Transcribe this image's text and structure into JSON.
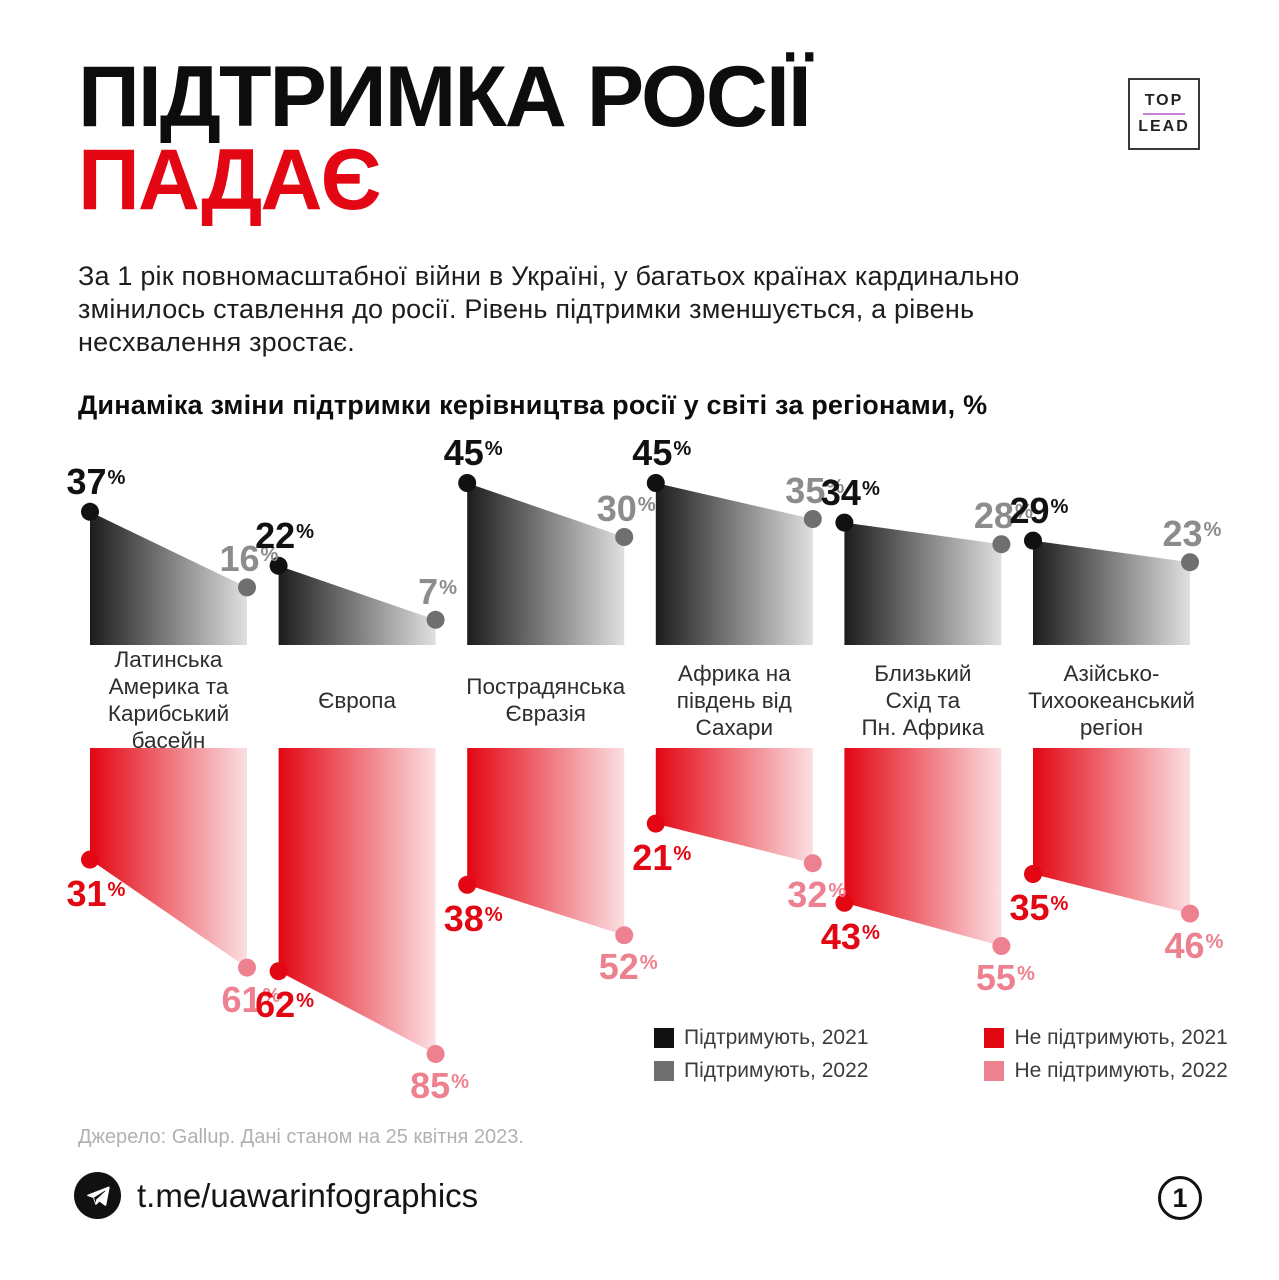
{
  "header": {
    "title_line1": "ПІДТРИМКА РОСІЇ",
    "title_line2": "ПАДАЄ",
    "logo_top": "TOP",
    "logo_bottom": "LEAD"
  },
  "intro_lines": [
    "За 1 рік повномасштабної війни в Україні, у багатьох країнах кардинально",
    "змінилось ставлення до росії. Рівень підтримки зменшується, а рівень",
    "несхвалення зростає."
  ],
  "chart_data": {
    "type": "area",
    "title": "Динаміка зміни підтримки керівництва росії у світі за регіонами, %",
    "unit": "%",
    "ylim": [
      0,
      100
    ],
    "grid": false,
    "legend_position": "bottom-right",
    "categories": [
      "Латинська Америка та Карибський басейн",
      "Європа",
      "Пострадянська Євразія",
      "Африка на південь від Сахари",
      "Близький Схід та Пн. Африка",
      "Азійсько-Тихоокеанський регіон"
    ],
    "category_lines": [
      [
        "Латинська",
        "Америка та",
        "Карибський",
        "басейн"
      ],
      [
        "Європа"
      ],
      [
        "Пострадянська",
        "Євразія"
      ],
      [
        "Африка на",
        "південь від",
        "Сахари"
      ],
      [
        "Близький",
        "Схід та",
        "Пн. Африка"
      ],
      [
        "Азійсько-",
        "Тихоокеанський",
        "регіон"
      ]
    ],
    "series": [
      {
        "name": "Підтримують, 2021",
        "color": "#111111",
        "values": [
          37,
          22,
          45,
          45,
          34,
          29
        ]
      },
      {
        "name": "Підтримують, 2022",
        "color": "#6f6f6f",
        "values": [
          16,
          7,
          30,
          35,
          28,
          23
        ]
      },
      {
        "name": "Не підтримують, 2021",
        "color": "#e30613",
        "values": [
          31,
          62,
          38,
          21,
          43,
          35
        ]
      },
      {
        "name": "Не підтримують, 2022",
        "color": "#ee8190",
        "values": [
          61,
          85,
          52,
          32,
          55,
          46
        ]
      }
    ],
    "colors": {
      "support_2021": "#111111",
      "support_2022_dot": "#6f6f6f",
      "support_2022_label": "#8c8c8c",
      "oppose_2021": "#e30613",
      "oppose_2022": "#ee8190",
      "grad_gray": [
        "#1c1c1c",
        "#e0e0e0"
      ],
      "grad_red": [
        "#e30613",
        "#fbdfe2"
      ]
    }
  },
  "legend": {
    "columns": [
      {
        "items": [
          {
            "swatch": "#111111",
            "label": "Підтримують, 2021"
          },
          {
            "swatch": "#6f6f6f",
            "label": "Підтримують, 2022"
          }
        ]
      },
      {
        "items": [
          {
            "swatch": "#e30613",
            "label": "Не підтримують, 2021"
          },
          {
            "swatch": "#ee8190",
            "label": "Не підтримують, 2022"
          }
        ]
      }
    ]
  },
  "source": "Джерело: Gallup. Дані станом на 25 квітня 2023.",
  "footer": {
    "telegram_handle": "t.me/uawarinfographics",
    "page_number": "1"
  }
}
